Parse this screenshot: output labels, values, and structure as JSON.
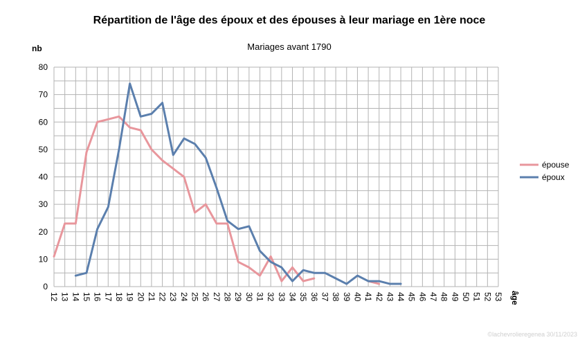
{
  "chart_data": {
    "type": "line",
    "title": "Répartition de l'âge des époux et des épouses à leur mariage en 1ère noce",
    "subtitle": "Mariages avant 1790",
    "xlabel": "âge",
    "ylabel": "nb",
    "ylim": [
      0,
      80
    ],
    "y_ticks": [
      "0",
      "10",
      "20",
      "30",
      "40",
      "50",
      "60",
      "70",
      "80"
    ],
    "categories": [
      "12",
      "13",
      "14",
      "15",
      "16",
      "17",
      "18",
      "19",
      "20",
      "21",
      "22",
      "23",
      "24",
      "25",
      "26",
      "27",
      "28",
      "29",
      "30",
      "31",
      "32",
      "33",
      "34",
      "35",
      "36",
      "37",
      "38",
      "39",
      "40",
      "41",
      "42",
      "43",
      "44",
      "45",
      "46",
      "47",
      "48",
      "49",
      "50",
      "51",
      "52",
      "53"
    ],
    "grid": true,
    "legend_position": "right",
    "series": [
      {
        "name": "épouse",
        "color": "#e8969c",
        "values": [
          11,
          23,
          23,
          49,
          60,
          61,
          62,
          58,
          57,
          50,
          46,
          43,
          40,
          27,
          30,
          23,
          23,
          9,
          7,
          4,
          11,
          2,
          7,
          2,
          3,
          null,
          null,
          null,
          null,
          2,
          1,
          null,
          null,
          null,
          null,
          null,
          null,
          null,
          null,
          null,
          null,
          null
        ]
      },
      {
        "name": "époux",
        "color": "#5b7fad",
        "values": [
          null,
          null,
          4,
          5,
          21,
          29,
          50,
          74,
          62,
          63,
          67,
          48,
          54,
          52,
          47,
          36,
          24,
          21,
          22,
          13,
          9,
          7,
          2,
          6,
          5,
          5,
          3,
          1,
          4,
          2,
          2,
          1,
          1,
          null,
          null,
          null,
          null,
          null,
          null,
          null,
          null,
          null
        ]
      }
    ]
  },
  "watermark": "©lachevrolieregenea 30/11/2023"
}
